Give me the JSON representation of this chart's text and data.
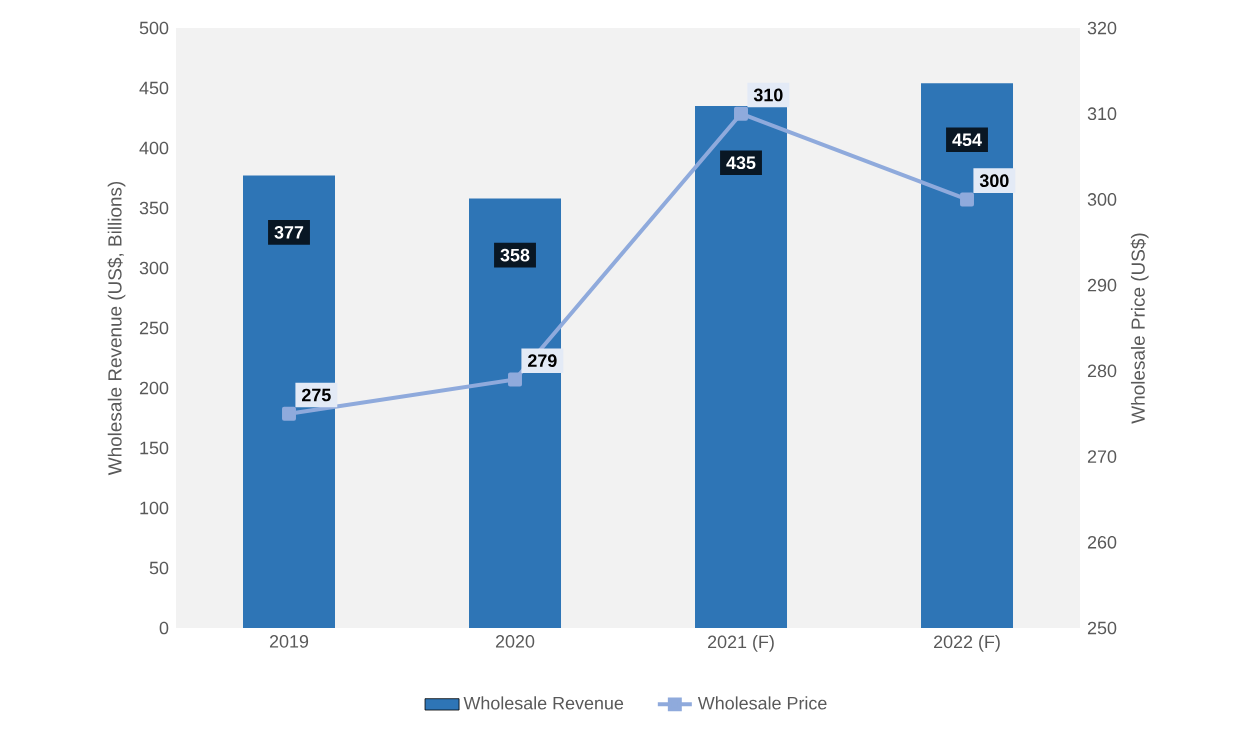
{
  "chart_data": {
    "type": "bar",
    "categories": [
      "2019",
      "2020",
      "2021 (F)",
      "2022 (F)"
    ],
    "ylabel": "Wholesale Revenue (US$, Billions)",
    "y2label": "Wholesale Price (US$)",
    "ylim": [
      0,
      500
    ],
    "yticks": [
      0,
      50,
      100,
      150,
      200,
      250,
      300,
      350,
      400,
      450,
      500
    ],
    "y2lim": [
      250,
      320
    ],
    "y2ticks": [
      250,
      260,
      270,
      280,
      290,
      300,
      310,
      320
    ],
    "data_labels": true,
    "legend": "bottom",
    "series": [
      {
        "name": "Wholesale Revenue",
        "color": "#2e75b6",
        "values": [
          377,
          358,
          435,
          454
        ]
      },
      {
        "name": "Wholesale Price",
        "type": "line",
        "axis": "y2",
        "color": "#8faadc",
        "marker": "square",
        "values": [
          275,
          279,
          310,
          300
        ]
      }
    ]
  }
}
